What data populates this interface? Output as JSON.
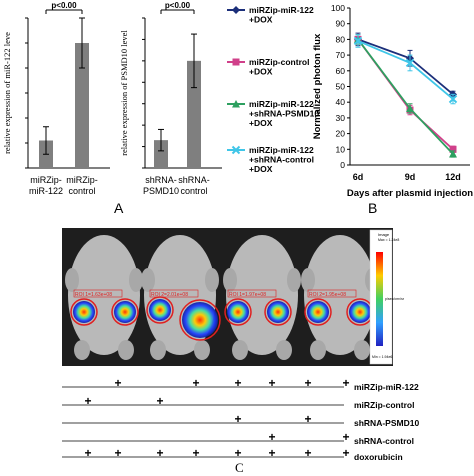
{
  "panelA": {
    "label": "A",
    "chart_data": [
      {
        "type": "bar",
        "categories": [
          "miRZip-miR-122",
          "miRZip-control"
        ],
        "category_lines": [
          [
            "miRZip-",
            "miR-122"
          ],
          [
            "miRZip-",
            "control"
          ]
        ],
        "values": [
          0.22,
          1.0
        ],
        "errors": [
          0.11,
          0.2
        ],
        "ylabel": "relative expression of miR-122 leve",
        "ylim": [
          0,
          1.2
        ],
        "yticks": [
          0,
          0.2,
          0.4,
          0.6,
          0.8,
          1,
          1.2
        ],
        "annotation": "p<0.00"
      },
      {
        "type": "bar",
        "categories": [
          "shRNA-PSMD10",
          "shRNA-control"
        ],
        "category_lines": [
          [
            "shRNA-",
            "PSMD10"
          ],
          [
            "shRNA-",
            "control"
          ]
        ],
        "values": [
          0.26,
          1.0
        ],
        "errors": [
          0.1,
          0.25
        ],
        "ylabel": "relative expression of PSMD10 level",
        "ylim": [
          0,
          1.4
        ],
        "yticks": [
          0,
          0.2,
          0.4,
          0.6,
          0.8,
          1,
          1.2,
          1.4
        ],
        "annotation": "p<0.00"
      }
    ],
    "legend": [
      {
        "lines": [
          "miRZip-miR-122",
          "+DOX"
        ],
        "color": "#1c2f7a",
        "marker": "diamond"
      },
      {
        "lines": [
          "miRZip-control",
          "+DOX"
        ],
        "color": "#d0408a",
        "marker": "square"
      },
      {
        "lines": [
          "miRZip-miR-122",
          "+shRNA-PSMD10",
          "+DOX"
        ],
        "color": "#2ea060",
        "marker": "triangle"
      },
      {
        "lines": [
          "miRZip-miR-122",
          "+shRNA-control",
          "+DOX"
        ],
        "color": "#3fc6e8",
        "marker": "x"
      }
    ]
  },
  "panelB": {
    "label": "B",
    "chart_data": {
      "type": "line",
      "categories": [
        "6d",
        "9d",
        "12d"
      ],
      "xlabel": "Days after plasmid injection",
      "ylabel": "Normalized photon flux",
      "ylim": [
        0,
        100
      ],
      "yticks": [
        0,
        10,
        20,
        30,
        40,
        50,
        60,
        70,
        80,
        90,
        100
      ],
      "series": [
        {
          "name": "miRZip-miR-122 +DOX",
          "values": [
            80,
            68,
            45
          ],
          "errors": [
            4,
            5,
            2
          ],
          "color": "#1c2f7a",
          "marker": "diamond"
        },
        {
          "name": "miRZip-control +DOX",
          "values": [
            80,
            35,
            10
          ],
          "errors": [
            3,
            3,
            2
          ],
          "color": "#d0408a",
          "marker": "square"
        },
        {
          "name": "miRZip-miR-122 +shRNA-PSMD10 +DOX",
          "values": [
            80,
            36,
            7
          ],
          "errors": [
            3,
            3,
            2
          ],
          "color": "#2ea060",
          "marker": "triangle"
        },
        {
          "name": "miRZip-miR-122 +shRNA-control +DOX",
          "values": [
            79,
            65,
            42
          ],
          "errors": [
            4,
            5,
            3
          ],
          "color": "#3fc6e8",
          "marker": "x"
        }
      ]
    }
  },
  "panelC": {
    "label": "C",
    "colorbar_title": "Image",
    "colorbar_min": "Min = 1.94e6",
    "colorbar_max": "Max = 1.24e8",
    "colorbar_unit": "p/sec/cm²/sr",
    "roi_labels": [
      "ROI 1=1.63e+08",
      "ROI 2=2.01e+08",
      "ROI 1=1.97e+08",
      "ROI 2=1.95e+08"
    ],
    "table": {
      "rows": [
        {
          "label": "miRZip-miR-122",
          "marks": [
            false,
            true,
            false,
            true,
            true,
            true,
            true,
            true
          ]
        },
        {
          "label": "miRZip-control",
          "marks": [
            true,
            false,
            true,
            false,
            false,
            false,
            false,
            false
          ]
        },
        {
          "label": "shRNA-PSMD10",
          "marks": [
            false,
            false,
            false,
            false,
            true,
            false,
            true,
            false
          ]
        },
        {
          "label": "shRNA-control",
          "marks": [
            false,
            false,
            false,
            false,
            false,
            true,
            false,
            true
          ]
        },
        {
          "label": "doxorubicin",
          "marks": [
            true,
            true,
            true,
            true,
            true,
            true,
            true,
            true
          ]
        }
      ],
      "mark_symbol": "+"
    }
  }
}
